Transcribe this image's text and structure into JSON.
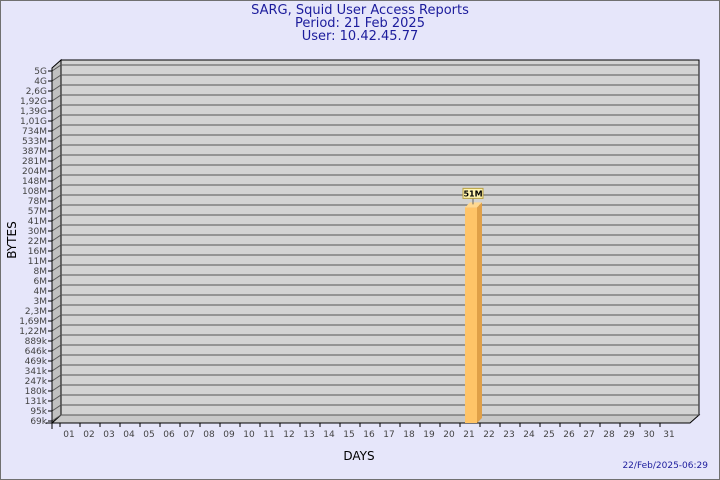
{
  "chart_data": {
    "type": "bar",
    "title": "SARG, Squid User Access Reports",
    "subtitle": [
      "Period: 21 Feb 2025",
      "User: 10.42.45.77"
    ],
    "xlabel": "DAYS",
    "ylabel": "BYTES",
    "y_scale": "log",
    "y_ticks": [
      "5G",
      "4G",
      "2,6G",
      "1,92G",
      "1,39G",
      "1,01G",
      "734M",
      "533M",
      "387M",
      "281M",
      "204M",
      "148M",
      "108M",
      "78M",
      "57M",
      "41M",
      "30M",
      "22M",
      "16M",
      "11M",
      "8M",
      "6M",
      "4M",
      "3M",
      "2,3M",
      "1,69M",
      "1,22M",
      "889k",
      "646k",
      "469k",
      "341k",
      "247k",
      "180k",
      "131k",
      "95k",
      "69k"
    ],
    "categories": [
      "01",
      "02",
      "03",
      "04",
      "05",
      "06",
      "07",
      "08",
      "09",
      "10",
      "11",
      "12",
      "13",
      "14",
      "15",
      "16",
      "17",
      "18",
      "19",
      "20",
      "21",
      "22",
      "23",
      "24",
      "25",
      "26",
      "27",
      "28",
      "29",
      "30",
      "31"
    ],
    "values": [
      null,
      null,
      null,
      null,
      null,
      null,
      null,
      null,
      null,
      null,
      null,
      null,
      null,
      null,
      null,
      null,
      null,
      null,
      null,
      null,
      51000000,
      null,
      null,
      null,
      null,
      null,
      null,
      null,
      null,
      null,
      null
    ],
    "data_labels": {
      "21": "51M"
    },
    "grid": true,
    "colors": {
      "bar": "#ffc468",
      "bar_side": "#e0a048",
      "plot": "#d3d3d3",
      "background": "#e6e6fa",
      "label_box": "#fff4b0"
    }
  },
  "footer": {
    "timestamp": "22/Feb/2025-06:29"
  }
}
